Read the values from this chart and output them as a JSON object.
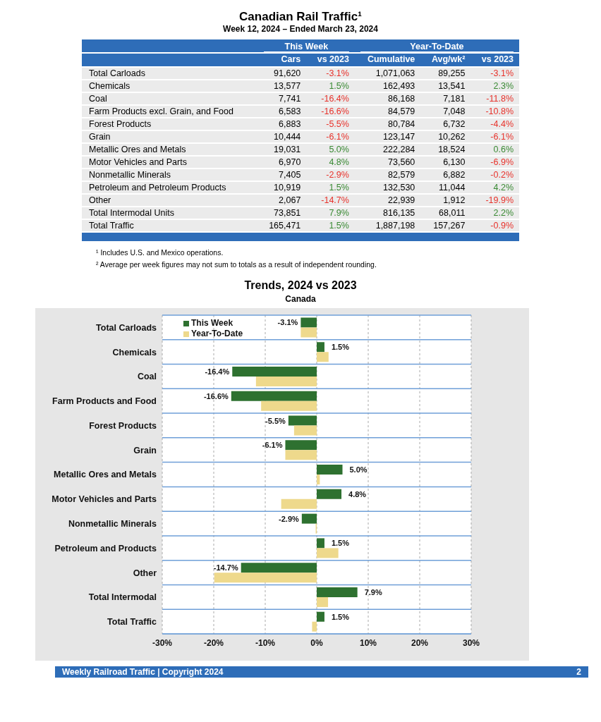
{
  "chart_data": [
    {
      "type": "other",
      "title": "Canadian Rail Traffic¹",
      "subtitle": "Week 12, 2024 – Ended March 23, 2024",
      "categories": [
        "Total Carloads",
        "Chemicals",
        "Coal",
        "Farm Products excl. Grain, and Food",
        "Forest Products",
        "Grain",
        "Metallic Ores and Metals",
        "Motor Vehicles and Parts",
        "Nonmetallic Minerals",
        "Petroleum and Petroleum Products",
        "Other",
        "Total Intermodal Units",
        "Total Traffic"
      ],
      "series": [
        {
          "name": "Cars",
          "values": [
            91620,
            13577,
            7741,
            6583,
            6883,
            10444,
            19031,
            6970,
            7405,
            10919,
            2067,
            73851,
            165471
          ],
          "value_labels": [
            "91,620",
            "13,577",
            "7,741",
            "6,583",
            "6,883",
            "10,444",
            "19,031",
            "6,970",
            "7,405",
            "10,919",
            "2,067",
            "73,851",
            "165,471"
          ]
        },
        {
          "name": "vs 2023",
          "colors": [
            "#e8322b",
            "#3a8a34",
            "#e8322b",
            "#e8322b",
            "#e8322b",
            "#e8322b",
            "#3a8a34",
            "#3a8a34",
            "#e8322b",
            "#3a8a34",
            "#e8322b",
            "#3a8a34",
            "#3a8a34"
          ],
          "values": [
            -3.1,
            1.5,
            -16.4,
            -16.6,
            -5.5,
            -6.1,
            5.0,
            4.8,
            -2.9,
            1.5,
            -14.7,
            7.9,
            1.5
          ],
          "value_labels": [
            "-3.1%",
            "1.5%",
            "-16.4%",
            "-16.6%",
            "-5.5%",
            "-6.1%",
            "5.0%",
            "4.8%",
            "-2.9%",
            "1.5%",
            "-14.7%",
            "7.9%",
            "1.5%"
          ]
        },
        {
          "name": "Cumulative",
          "values": [
            1071063,
            162493,
            86168,
            84579,
            80784,
            123147,
            222284,
            73560,
            82579,
            132530,
            22939,
            816135,
            1887198
          ],
          "value_labels": [
            "1,071,063",
            "162,493",
            "86,168",
            "84,579",
            "80,784",
            "123,147",
            "222,284",
            "73,560",
            "82,579",
            "132,530",
            "22,939",
            "816,135",
            "1,887,198"
          ]
        },
        {
          "name": "Avg/wk²",
          "values": [
            89255,
            13541,
            7181,
            7048,
            6732,
            10262,
            18524,
            6130,
            6882,
            11044,
            1912,
            68011,
            157267
          ],
          "value_labels": [
            "89,255",
            "13,541",
            "7,181",
            "7,048",
            "6,732",
            "10,262",
            "18,524",
            "6,130",
            "6,882",
            "11,044",
            "1,912",
            "68,011",
            "157,267"
          ]
        },
        {
          "name": "vs 2023",
          "colors": [
            "#e8322b",
            "#3a8a34",
            "#e8322b",
            "#e8322b",
            "#e8322b",
            "#e8322b",
            "#3a8a34",
            "#e8322b",
            "#e8322b",
            "#3a8a34",
            "#e8322b",
            "#3a8a34",
            "#e8322b"
          ],
          "values": [
            -3.1,
            2.3,
            -11.8,
            -10.8,
            -4.4,
            -6.1,
            0.6,
            -6.9,
            -0.2,
            4.2,
            -19.9,
            2.2,
            -0.9
          ],
          "value_labels": [
            "-3.1%",
            "2.3%",
            "-11.8%",
            "-10.8%",
            "-4.4%",
            "-6.1%",
            "0.6%",
            "-6.9%",
            "-0.2%",
            "4.2%",
            "-19.9%",
            "2.2%",
            "-0.9%"
          ]
        }
      ],
      "annotations": [
        "This Week",
        "Year-To-Date",
        "¹ Includes U.S. and Mexico operations.",
        "² Average per week figures may not sum to totals as a result of independent rounding."
      ]
    },
    {
      "type": "bar",
      "orientation": "horizontal",
      "title": "Trends, 2024 vs 2023",
      "subtitle": "Canada",
      "categories": [
        "Total Carloads",
        "Chemicals",
        "Coal",
        "Farm Products and Food",
        "Forest Products",
        "Grain",
        "Metallic Ores and Metals",
        "Motor Vehicles and Parts",
        "Nonmetallic Minerals",
        "Petroleum and Products",
        "Other",
        "Total Intermodal",
        "Total Traffic"
      ],
      "series": [
        {
          "name": "This Week",
          "color": "#2e7130",
          "values": [
            -3.1,
            1.5,
            -16.4,
            -16.6,
            -5.5,
            -6.1,
            5.0,
            4.8,
            -2.9,
            1.5,
            -14.7,
            7.9,
            1.5
          ],
          "value_labels": [
            "-3.1%",
            "1.5%",
            "-16.4%",
            "-16.6%",
            "-5.5%",
            "-6.1%",
            "5.0%",
            "4.8%",
            "-2.9%",
            "1.5%",
            "-14.7%",
            "7.9%",
            "1.5%"
          ]
        },
        {
          "name": "Year-To-Date",
          "color": "#eed98c",
          "values": [
            -3.1,
            2.3,
            -11.8,
            -10.8,
            -4.4,
            -6.1,
            0.6,
            -6.9,
            -0.2,
            4.2,
            -19.9,
            2.2,
            -0.9
          ]
        }
      ],
      "xlim": [
        -30,
        30
      ],
      "xticks": [
        {
          "value": -30,
          "label": "-30%"
        },
        {
          "value": -20,
          "label": "-20%"
        },
        {
          "value": -10,
          "label": "-10%"
        },
        {
          "value": 0,
          "label": "0%"
        },
        {
          "value": 10,
          "label": "10%"
        },
        {
          "value": 20,
          "label": "20%"
        },
        {
          "value": 30,
          "label": "30%"
        }
      ],
      "grid": true,
      "legend": "top left",
      "annotations": [
        "Weekly Railroad Traffic | Copyright 2024",
        "2"
      ]
    }
  ]
}
